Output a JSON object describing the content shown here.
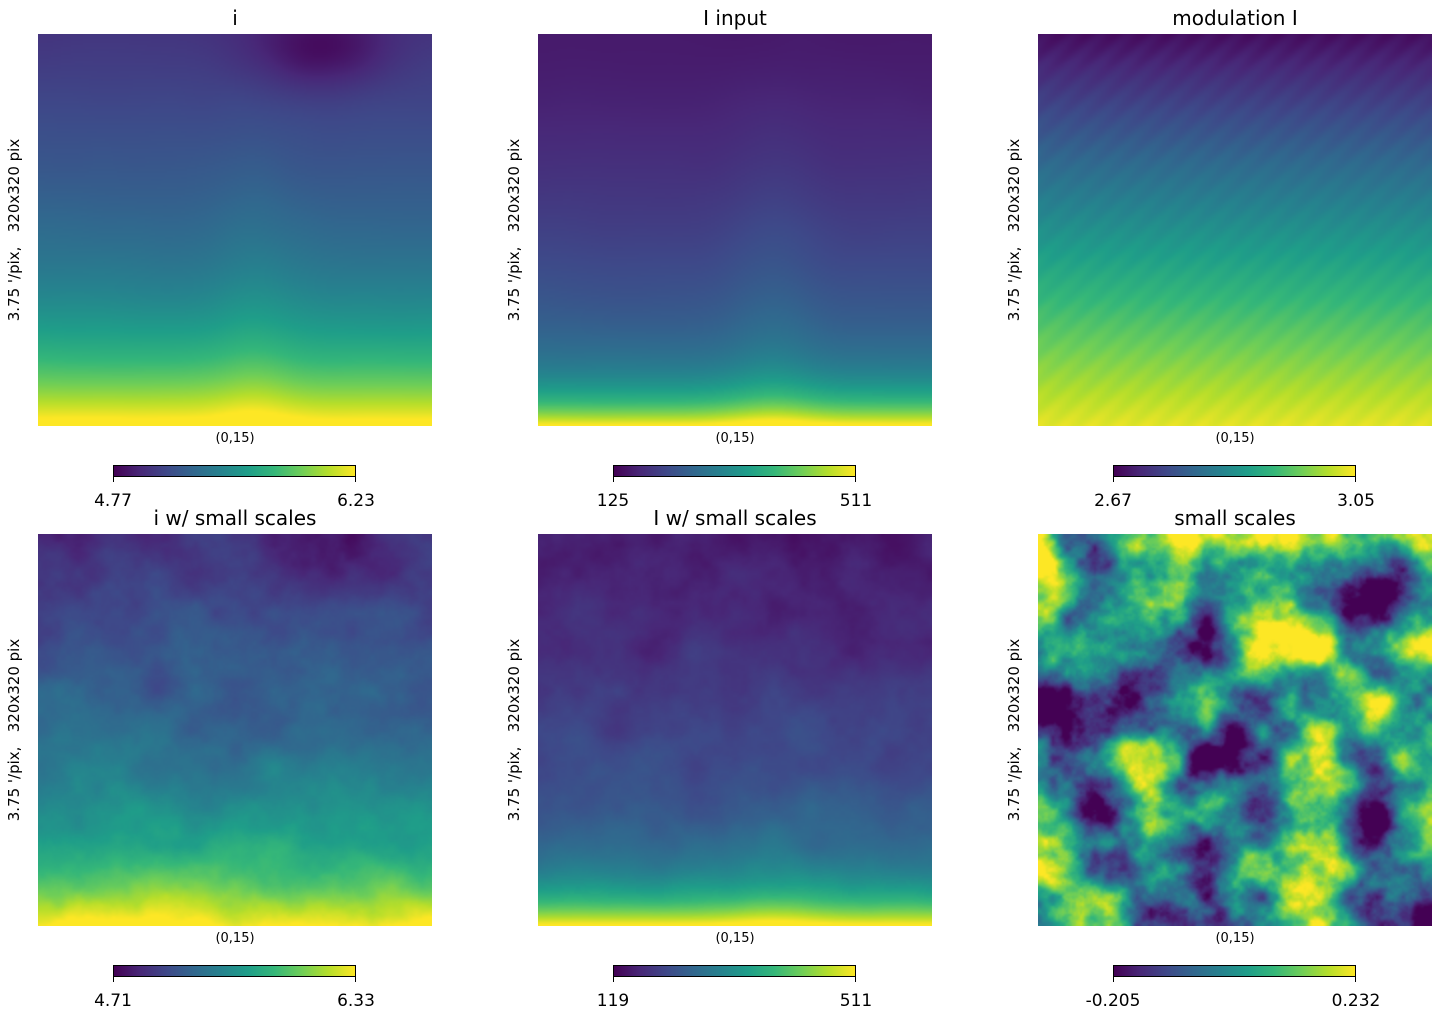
{
  "panels": [
    {
      "id": "i",
      "title": "i",
      "ylabel": "3.75 '/pix,   320x320 pix",
      "xlabel": "(0,15)",
      "cbar_min": "4.77",
      "cbar_max": "6.23",
      "colormap": "viridis"
    },
    {
      "id": "I_input",
      "title": "I input",
      "ylabel": "3.75 '/pix,   320x320 pix",
      "xlabel": "(0,15)",
      "cbar_min": "125",
      "cbar_max": "511",
      "colormap": "viridis"
    },
    {
      "id": "modulation",
      "title": "modulation I",
      "ylabel": "3.75 '/pix,   320x320 pix",
      "xlabel": "(0,15)",
      "cbar_min": "2.67",
      "cbar_max": "3.05",
      "colormap": "viridis"
    },
    {
      "id": "i_small",
      "title": "i w/ small scales",
      "ylabel": "3.75 '/pix,   320x320 pix",
      "xlabel": "(0,15)",
      "cbar_min": "4.71",
      "cbar_max": "6.33",
      "colormap": "viridis"
    },
    {
      "id": "I_small",
      "title": "I w/ small scales",
      "ylabel": "3.75 '/pix,   320x320 pix",
      "xlabel": "(0,15)",
      "cbar_min": "119",
      "cbar_max": "511",
      "colormap": "viridis"
    },
    {
      "id": "small_scales",
      "title": "small scales",
      "ylabel": "3.75 '/pix,   320x320 pix",
      "xlabel": "(0,15)",
      "cbar_min": "-0.205",
      "cbar_max": "0.232",
      "colormap": "viridis"
    }
  ],
  "chart_data": {
    "type": "heatmap",
    "colormap": "viridis",
    "maps": [
      {
        "title": "i",
        "range": [
          4.77,
          6.23
        ]
      },
      {
        "title": "I input",
        "range": [
          125,
          511
        ]
      },
      {
        "title": "modulation I",
        "range": [
          2.67,
          3.05
        ]
      },
      {
        "title": "i w/ small scales",
        "range": [
          4.71,
          6.33
        ]
      },
      {
        "title": "I w/ small scales",
        "range": [
          119,
          511
        ]
      },
      {
        "title": "small scales",
        "range": [
          -0.205,
          0.232
        ]
      }
    ]
  }
}
